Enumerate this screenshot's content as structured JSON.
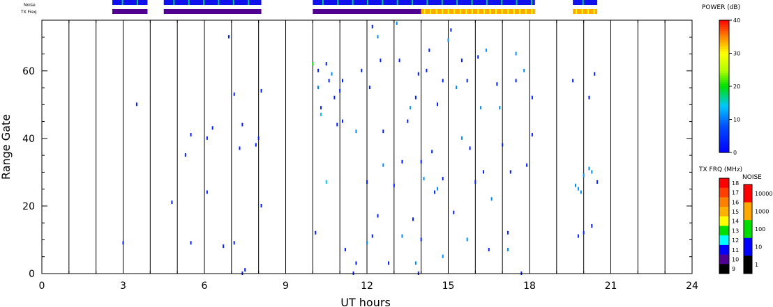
{
  "chart_data": {
    "type": "scatter",
    "xlabel": "UT hours",
    "ylabel": "Range Gate",
    "xlim": [
      0,
      24
    ],
    "ylim": [
      0,
      75
    ],
    "x_ticks": [
      0,
      3,
      6,
      9,
      12,
      15,
      18,
      21,
      24
    ],
    "y_ticks": [
      0,
      20,
      40,
      60
    ],
    "vertical_hour_lines": [
      1,
      2,
      3,
      4,
      5,
      6,
      7,
      8,
      9,
      10,
      11,
      12,
      13,
      14,
      15,
      16,
      17,
      18,
      19,
      20,
      21,
      22,
      23
    ],
    "grid": "vertical lines at each hour",
    "status_strips": {
      "noise": {
        "label": "Noise",
        "segments": [
          {
            "start": 2.6,
            "end": 3.9,
            "level": "10"
          },
          {
            "start": 4.5,
            "end": 8.1,
            "level": "10"
          },
          {
            "start": 10.0,
            "end": 18.2,
            "level": "10"
          },
          {
            "start": 19.6,
            "end": 20.5,
            "level": "10"
          }
        ]
      },
      "tx_freq": {
        "label": "TX Freq",
        "segments": [
          {
            "start": 2.6,
            "end": 3.9,
            "level": 10
          },
          {
            "start": 4.5,
            "end": 8.1,
            "level": 10
          },
          {
            "start": 10.0,
            "end": 14.0,
            "level": 10
          },
          {
            "start": 14.0,
            "end": 18.2,
            "level": 14.5
          },
          {
            "start": 19.6,
            "end": 20.5,
            "level": 14.5
          }
        ]
      }
    },
    "series": [
      {
        "power_db": 3,
        "points": [
          [
            3.0,
            9
          ],
          [
            3.5,
            50
          ],
          [
            4.8,
            21
          ],
          [
            5.3,
            35
          ],
          [
            5.5,
            41
          ],
          [
            5.5,
            9
          ],
          [
            6.1,
            24
          ],
          [
            6.1,
            40
          ],
          [
            6.3,
            43
          ],
          [
            6.7,
            8
          ],
          [
            6.9,
            70
          ],
          [
            7.1,
            53
          ],
          [
            7.1,
            9
          ],
          [
            7.3,
            37
          ],
          [
            7.4,
            44
          ],
          [
            7.4,
            0
          ],
          [
            7.5,
            1
          ],
          [
            7.9,
            38
          ],
          [
            8.0,
            40
          ],
          [
            8.1,
            54
          ],
          [
            8.1,
            20
          ],
          [
            10.1,
            12
          ],
          [
            10.2,
            55
          ],
          [
            10.2,
            60
          ],
          [
            10.3,
            49
          ],
          [
            10.5,
            62
          ],
          [
            10.6,
            57
          ],
          [
            10.8,
            52
          ],
          [
            10.9,
            44
          ],
          [
            11.0,
            54
          ],
          [
            11.1,
            57
          ],
          [
            11.1,
            45
          ],
          [
            11.2,
            7
          ],
          [
            11.5,
            0
          ],
          [
            11.6,
            3
          ],
          [
            11.8,
            60
          ],
          [
            12.0,
            27
          ],
          [
            12.1,
            55
          ],
          [
            12.2,
            73
          ],
          [
            12.2,
            11
          ],
          [
            12.4,
            17
          ],
          [
            12.5,
            63
          ],
          [
            12.6,
            42
          ],
          [
            12.8,
            3
          ],
          [
            13.0,
            26
          ],
          [
            13.2,
            63
          ],
          [
            13.3,
            33
          ],
          [
            13.5,
            45
          ],
          [
            13.7,
            16
          ],
          [
            13.8,
            52
          ],
          [
            13.9,
            59
          ],
          [
            13.9,
            0
          ],
          [
            14.0,
            33
          ],
          [
            14.0,
            10
          ],
          [
            14.2,
            60
          ],
          [
            14.3,
            66
          ],
          [
            14.4,
            36
          ],
          [
            14.5,
            24
          ],
          [
            14.6,
            50
          ],
          [
            14.8,
            28
          ],
          [
            14.8,
            57
          ],
          [
            15.1,
            72
          ],
          [
            15.2,
            18
          ],
          [
            15.5,
            63
          ],
          [
            15.7,
            57
          ],
          [
            15.8,
            37
          ],
          [
            16.0,
            27
          ],
          [
            16.1,
            64
          ],
          [
            16.3,
            30
          ],
          [
            16.5,
            7
          ],
          [
            16.8,
            56
          ],
          [
            17.0,
            38
          ],
          [
            17.2,
            12
          ],
          [
            17.3,
            30
          ],
          [
            17.5,
            57
          ],
          [
            17.7,
            0
          ],
          [
            17.9,
            32
          ],
          [
            18.1,
            52
          ],
          [
            18.1,
            41
          ],
          [
            19.6,
            57
          ],
          [
            19.8,
            11
          ],
          [
            20.0,
            12
          ],
          [
            20.2,
            52
          ],
          [
            20.3,
            14
          ],
          [
            20.4,
            59
          ],
          [
            20.5,
            27
          ]
        ]
      },
      {
        "power_db": 11,
        "points": [
          [
            10.2,
            55
          ],
          [
            10.7,
            59
          ],
          [
            11.6,
            42
          ],
          [
            12.0,
            9
          ],
          [
            12.4,
            70
          ],
          [
            12.6,
            32
          ],
          [
            13.1,
            74
          ],
          [
            13.3,
            11
          ],
          [
            13.6,
            49
          ],
          [
            13.8,
            3
          ],
          [
            14.1,
            28
          ],
          [
            14.6,
            25
          ],
          [
            14.8,
            5
          ],
          [
            15.0,
            69
          ],
          [
            15.3,
            55
          ],
          [
            15.5,
            40
          ],
          [
            15.7,
            10
          ],
          [
            16.2,
            49
          ],
          [
            16.4,
            66
          ],
          [
            16.6,
            22
          ],
          [
            16.9,
            49
          ],
          [
            17.2,
            7
          ],
          [
            17.5,
            65
          ],
          [
            17.8,
            60
          ],
          [
            19.7,
            26
          ],
          [
            19.8,
            25
          ],
          [
            19.9,
            24
          ],
          [
            20.0,
            29
          ],
          [
            20.2,
            31
          ],
          [
            20.3,
            30
          ]
        ]
      },
      {
        "power_db": 14,
        "points": [
          [
            10.5,
            27
          ],
          [
            10.3,
            47
          ]
        ]
      },
      {
        "power_db": 20,
        "points": [
          [
            10.0,
            62
          ]
        ]
      }
    ],
    "colorbars": [
      {
        "title": "POWER (dB)",
        "ticks": [
          "40",
          "30",
          "20",
          "10",
          "0"
        ],
        "range": [
          0,
          40
        ]
      },
      {
        "title": "TX FRQ (MHz)",
        "ticks": [
          "18",
          "17",
          "16",
          "15",
          "14",
          "13",
          "12",
          "11",
          "10",
          "9"
        ],
        "colors": [
          "#ff0000",
          "#ff4000",
          "#ff8000",
          "#ffb000",
          "#ffff00",
          "#00e000",
          "#00ffff",
          "#0000ff",
          "#500090",
          "#000000"
        ]
      },
      {
        "title": "NOISE",
        "ticks": [
          "10000",
          "1000",
          "100",
          "10",
          "1"
        ],
        "colors": [
          "#ff0000",
          "#ffaa00",
          "#00dd00",
          "#0000ff",
          "#000000"
        ]
      }
    ]
  }
}
